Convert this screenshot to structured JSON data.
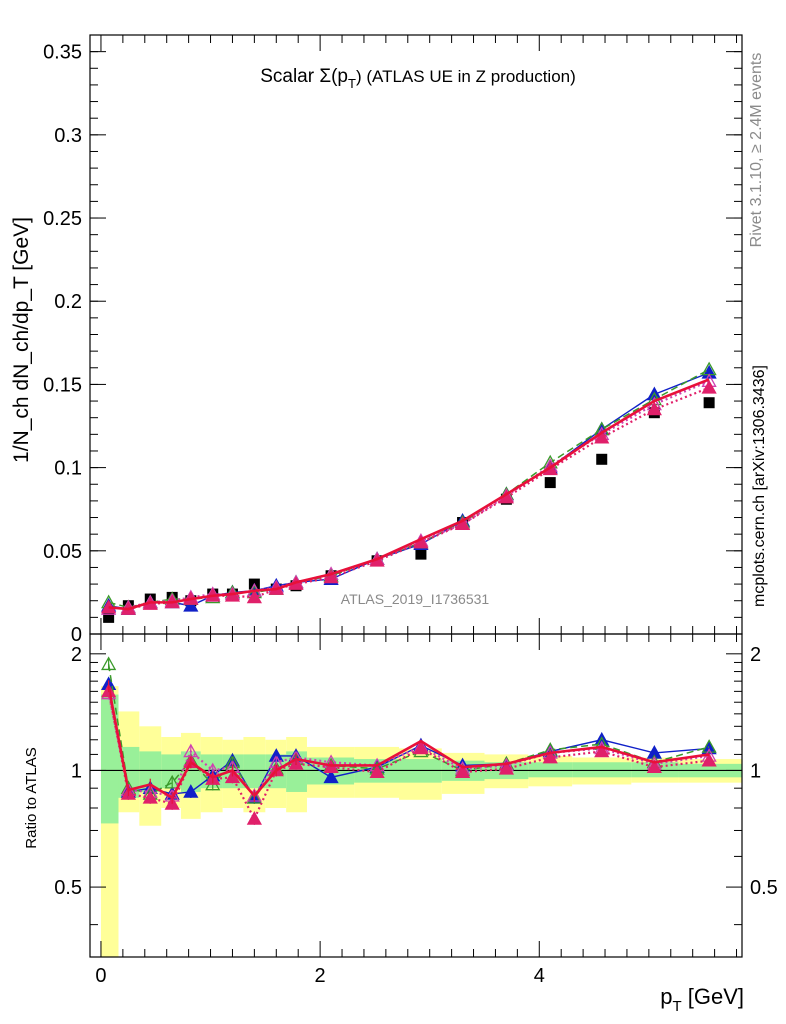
{
  "chart_data": [
    {
      "type": "scatter",
      "panel": "main",
      "title": "Scalar Σ(p_T) (ATLAS UE in Z production)",
      "title_main": "Scalar Σ(p",
      "title_sub": "T",
      "title_rest": ") (ATLAS UE in Z production)",
      "ylabel": "1/N_ch dN_ch/dp_T [GeV]",
      "ylim": [
        0,
        0.36
      ],
      "yticks": [
        0,
        0.05,
        0.1,
        0.15,
        0.2,
        0.25,
        0.3,
        0.35
      ],
      "ytick_labels": [
        "0",
        "0.05",
        "0.1",
        "0.15",
        "0.2",
        "0.25",
        "0.3",
        "0.35"
      ],
      "xlim": [
        -0.1,
        5.85
      ],
      "analysis_label": "ATLAS_2019_I1736531",
      "right_label_top": "Rivet 3.1.10, ≥ 2.4M events",
      "right_label_bottom": "mcplots.cern.ch [arXiv:1306.3436]",
      "x": [
        0.07,
        0.25,
        0.45,
        0.65,
        0.82,
        1.02,
        1.2,
        1.4,
        1.6,
        1.78,
        2.1,
        2.52,
        2.92,
        3.3,
        3.7,
        4.1,
        4.57,
        5.05,
        5.55
      ],
      "series": [
        {
          "name": "ATLAS",
          "style": "data",
          "color": "#000000",
          "values": [
            0.01,
            0.017,
            0.021,
            0.022,
            0.02,
            0.024,
            0.024,
            0.03,
            0.027,
            0.029,
            0.035,
            0.044,
            0.048,
            0.067,
            0.081,
            0.091,
            0.105,
            0.133,
            0.139
          ]
        },
        {
          "style": "line-triangle",
          "color": "#1020c8",
          "values": [
            0.017,
            0.015,
            0.019,
            0.019,
            0.017,
            0.023,
            0.025,
            0.026,
            0.029,
            0.031,
            0.033,
            0.045,
            0.054,
            0.068,
            0.084,
            0.1,
            0.123,
            0.144,
            0.157
          ]
        },
        {
          "style": "dashed-triangle",
          "color": "#3a9a2a",
          "values": [
            0.019,
            0.016,
            0.019,
            0.021,
            0.021,
            0.022,
            0.025,
            0.025,
            0.027,
            0.031,
            0.035,
            0.045,
            0.055,
            0.067,
            0.084,
            0.103,
            0.123,
            0.141,
            0.159
          ]
        },
        {
          "style": "dotted-triangle-open",
          "color": "#d040b0",
          "values": [
            0.015,
            0.016,
            0.019,
            0.02,
            0.022,
            0.024,
            0.024,
            0.026,
            0.028,
            0.031,
            0.036,
            0.045,
            0.056,
            0.066,
            0.083,
            0.101,
            0.12,
            0.138,
            0.152
          ]
        },
        {
          "style": "dotted-triangle",
          "color": "#e0206a",
          "values": [
            0.016,
            0.015,
            0.018,
            0.019,
            0.021,
            0.023,
            0.023,
            0.022,
            0.027,
            0.03,
            0.034,
            0.044,
            0.055,
            0.066,
            0.082,
            0.099,
            0.118,
            0.135,
            0.148
          ]
        },
        {
          "style": "thick-line",
          "color": "#e8103a",
          "values": [
            0.016,
            0.015,
            0.019,
            0.019,
            0.021,
            0.023,
            0.024,
            0.026,
            0.027,
            0.031,
            0.036,
            0.045,
            0.057,
            0.068,
            0.084,
            0.1,
            0.121,
            0.14,
            0.153
          ]
        }
      ]
    },
    {
      "type": "line",
      "panel": "ratio",
      "ylabel": "Ratio to ATLAS",
      "xlabel": "p_T [GeV]",
      "xlabel_main": "p",
      "xlabel_sub": "T",
      "xlabel_rest": " [GeV]",
      "ylim": [
        0.33,
        2.25
      ],
      "yticks": [
        0.5,
        1,
        2
      ],
      "ytick_labels": [
        "0.5",
        "1",
        "2"
      ],
      "xticks": [
        0,
        2,
        4
      ],
      "xtick_labels": [
        "0",
        "2",
        "4"
      ],
      "xlim": [
        -0.1,
        5.85
      ],
      "bin_edges": [
        0.0,
        0.16,
        0.35,
        0.55,
        0.73,
        0.91,
        1.11,
        1.3,
        1.5,
        1.69,
        1.88,
        2.31,
        2.72,
        3.11,
        3.5,
        3.9,
        4.3,
        4.84,
        5.27,
        5.85
      ],
      "band_green": [
        [
          0.73,
          1.57
        ],
        [
          0.85,
          1.15
        ],
        [
          0.88,
          1.12
        ],
        [
          0.9,
          1.1
        ],
        [
          0.88,
          1.12
        ],
        [
          0.9,
          1.1
        ],
        [
          0.9,
          1.1
        ],
        [
          0.9,
          1.1
        ],
        [
          0.9,
          1.1
        ],
        [
          0.88,
          1.12
        ],
        [
          0.92,
          1.08
        ],
        [
          0.93,
          1.07
        ],
        [
          0.93,
          1.07
        ],
        [
          0.94,
          1.06
        ],
        [
          0.95,
          1.05
        ],
        [
          0.96,
          1.05
        ],
        [
          0.96,
          1.05
        ],
        [
          0.96,
          1.05
        ],
        [
          0.96,
          1.04
        ]
      ],
      "band_yellow": [
        [
          0.33,
          1.65
        ],
        [
          0.78,
          1.42
        ],
        [
          0.72,
          1.3
        ],
        [
          0.8,
          1.22
        ],
        [
          0.75,
          1.25
        ],
        [
          0.78,
          1.22
        ],
        [
          0.8,
          1.2
        ],
        [
          0.78,
          1.22
        ],
        [
          0.8,
          1.2
        ],
        [
          0.78,
          1.22
        ],
        [
          0.85,
          1.15
        ],
        [
          0.85,
          1.15
        ],
        [
          0.84,
          1.14
        ],
        [
          0.87,
          1.11
        ],
        [
          0.9,
          1.1
        ],
        [
          0.91,
          1.09
        ],
        [
          0.92,
          1.08
        ],
        [
          0.93,
          1.08
        ],
        [
          0.93,
          1.07
        ]
      ],
      "x": [
        0.07,
        0.25,
        0.45,
        0.65,
        0.82,
        1.02,
        1.2,
        1.4,
        1.6,
        1.78,
        2.1,
        2.52,
        2.92,
        3.3,
        3.7,
        4.1,
        4.57,
        5.05,
        5.55
      ],
      "series": [
        {
          "style": "line-triangle",
          "color": "#1020c8",
          "values": [
            1.67,
            0.88,
            0.9,
            0.87,
            0.88,
            0.97,
            1.06,
            0.85,
            1.09,
            1.09,
            0.96,
            1.02,
            1.16,
            1.03,
            1.04,
            1.12,
            1.2,
            1.11,
            1.14
          ]
        },
        {
          "style": "dashed-triangle",
          "color": "#3a9a2a",
          "values": [
            1.88,
            0.9,
            0.87,
            0.93,
            1.06,
            0.92,
            1.05,
            0.85,
            1.01,
            1.07,
            1.03,
            1.01,
            1.12,
            1.0,
            1.04,
            1.13,
            1.17,
            1.05,
            1.15
          ]
        },
        {
          "style": "dotted-triangle-open",
          "color": "#d040b0",
          "values": [
            1.58,
            0.89,
            0.88,
            0.86,
            1.12,
            1.0,
            1.02,
            0.86,
            1.05,
            1.08,
            1.05,
            1.03,
            1.15,
            1.01,
            1.03,
            1.11,
            1.14,
            1.04,
            1.09
          ]
        },
        {
          "style": "dotted-triangle",
          "color": "#e0206a",
          "values": [
            1.6,
            0.87,
            0.85,
            0.82,
            1.05,
            0.95,
            0.96,
            0.75,
            1.0,
            1.04,
            1.02,
            0.99,
            1.14,
            0.99,
            1.01,
            1.08,
            1.12,
            1.02,
            1.06
          ]
        },
        {
          "style": "thick-line",
          "color": "#e8103a",
          "values": [
            1.65,
            0.89,
            0.92,
            0.85,
            1.05,
            0.96,
            1.0,
            0.86,
            1.0,
            1.07,
            1.03,
            1.03,
            1.19,
            1.02,
            1.04,
            1.11,
            1.15,
            1.05,
            1.1
          ]
        }
      ]
    }
  ]
}
